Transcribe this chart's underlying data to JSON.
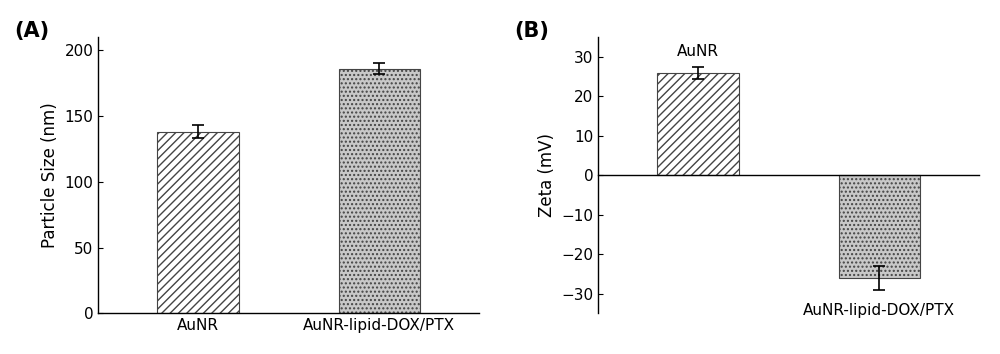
{
  "panel_A": {
    "categories": [
      "AuNR",
      "AuNR-lipid-DOX/PTX"
    ],
    "values": [
      138,
      186
    ],
    "errors": [
      5,
      4
    ],
    "ylabel": "Particle Size (nm)",
    "ylim": [
      0,
      210
    ],
    "yticks": [
      0,
      50,
      100,
      150,
      200
    ],
    "label": "(A)",
    "hatch_patterns": [
      "////",
      "...."
    ],
    "bar_facecolor": [
      "#ffffff",
      "#c8c8c8"
    ],
    "bar_edgecolor": "#444444"
  },
  "panel_B": {
    "categories": [
      "AuNR",
      "AuNR-lipid-DOX/PTX"
    ],
    "values": [
      26,
      -26
    ],
    "errors": [
      1.5,
      3
    ],
    "ylabel": "Zeta (mV)",
    "ylim": [
      -35,
      35
    ],
    "yticks": [
      -30,
      -20,
      -10,
      0,
      10,
      20,
      30
    ],
    "label": "(B)",
    "hatch_patterns": [
      "////",
      "...."
    ],
    "bar_facecolor": [
      "#ffffff",
      "#c8c8c8"
    ],
    "bar_edgecolor": "#444444"
  },
  "background_color": "#ffffff",
  "font_family": "DejaVu Sans",
  "label_fontsize": 15,
  "tick_fontsize": 11,
  "axis_label_fontsize": 12
}
